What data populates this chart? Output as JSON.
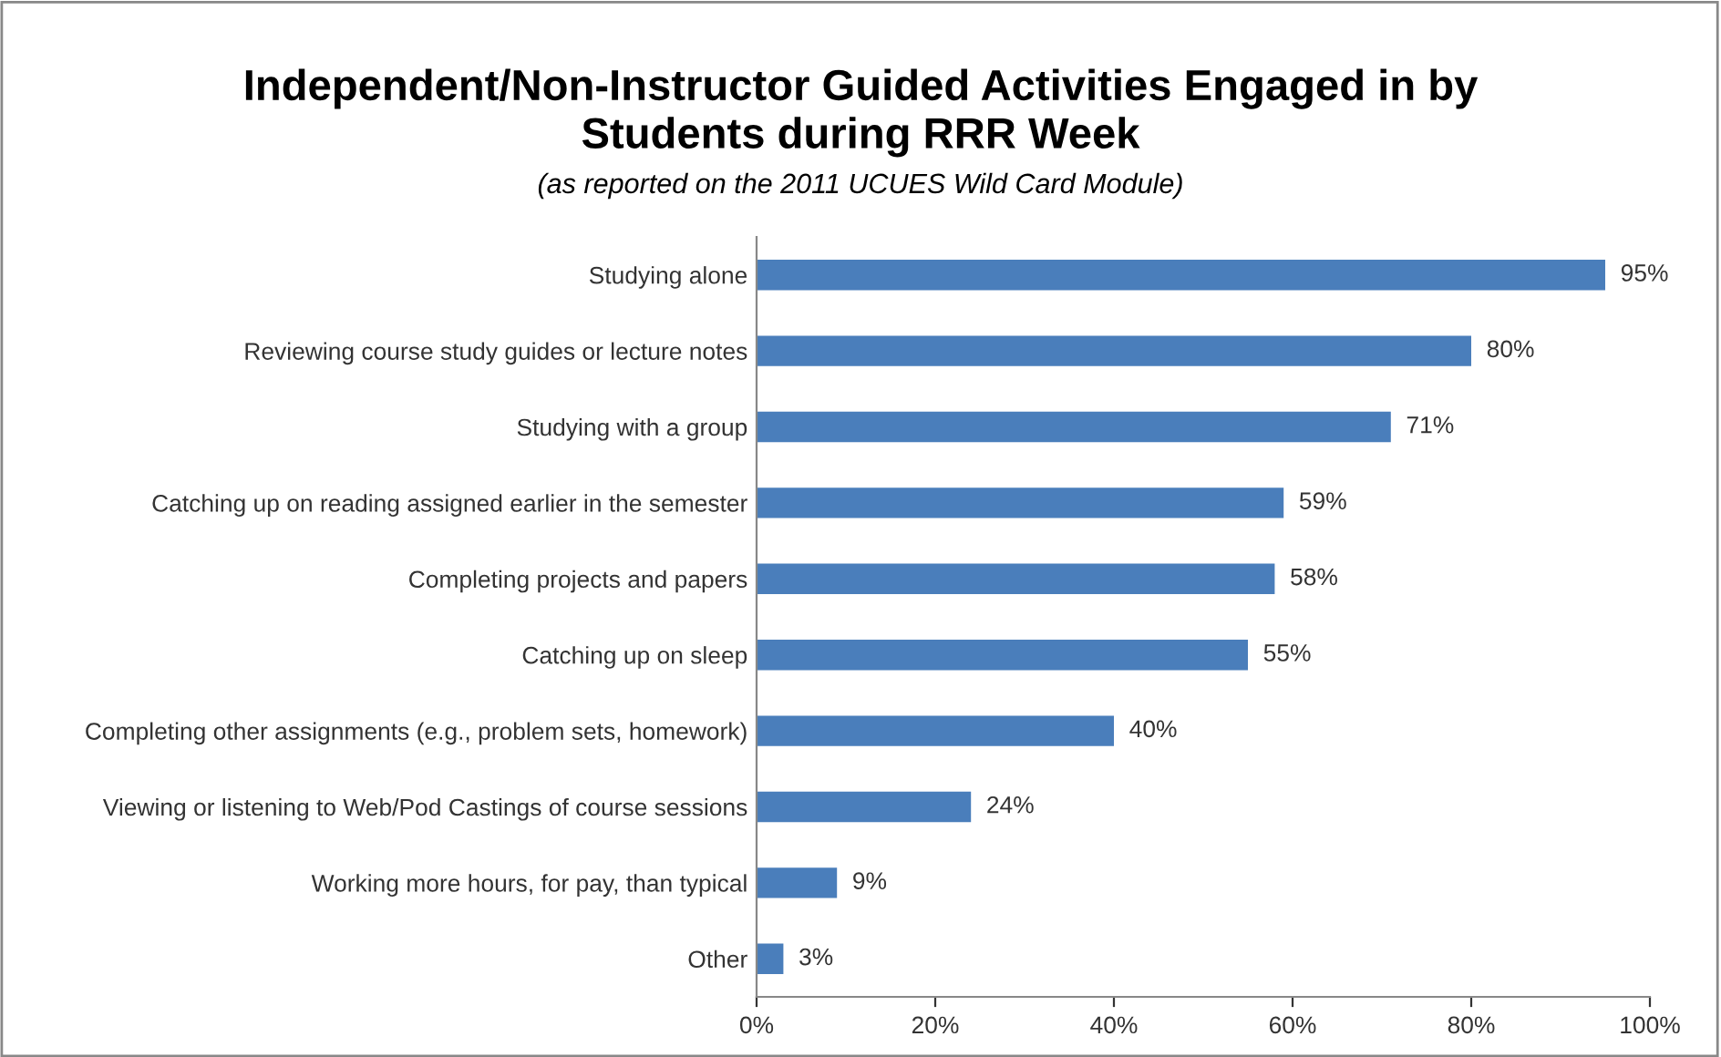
{
  "chart_data": {
    "type": "bar",
    "orientation": "horizontal",
    "title": "Independent/Non-Instructor Guided Activities Engaged in by\nStudents during RRR Week",
    "subtitle": "(as reported on the 2011 UCUES Wild Card Module)",
    "categories": [
      "Studying alone",
      "Reviewing course study guides or lecture notes",
      "Studying with a group",
      "Catching up on reading assigned earlier in the semester",
      "Completing projects and papers",
      "Catching up on sleep",
      "Completing other assignments (e.g., problem sets, homework)",
      "Viewing or listening to Web/Pod Castings of course sessions",
      "Working more hours, for pay, than typical",
      "Other"
    ],
    "values": [
      95,
      80,
      71,
      59,
      58,
      55,
      40,
      24,
      9,
      3
    ],
    "value_labels": [
      "95%",
      "80%",
      "71%",
      "59%",
      "58%",
      "55%",
      "40%",
      "24%",
      "9%",
      "3%"
    ],
    "color": "#4a7ebb",
    "xlim": [
      0,
      100
    ],
    "xticks": [
      {
        "value": 0,
        "label": "0%"
      },
      {
        "value": 20,
        "label": "20%"
      },
      {
        "value": 40,
        "label": "40%"
      },
      {
        "value": 60,
        "label": "60%"
      },
      {
        "value": 80,
        "label": "80%"
      },
      {
        "value": 100,
        "label": "100%"
      }
    ],
    "grid": false,
    "legend": false
  }
}
